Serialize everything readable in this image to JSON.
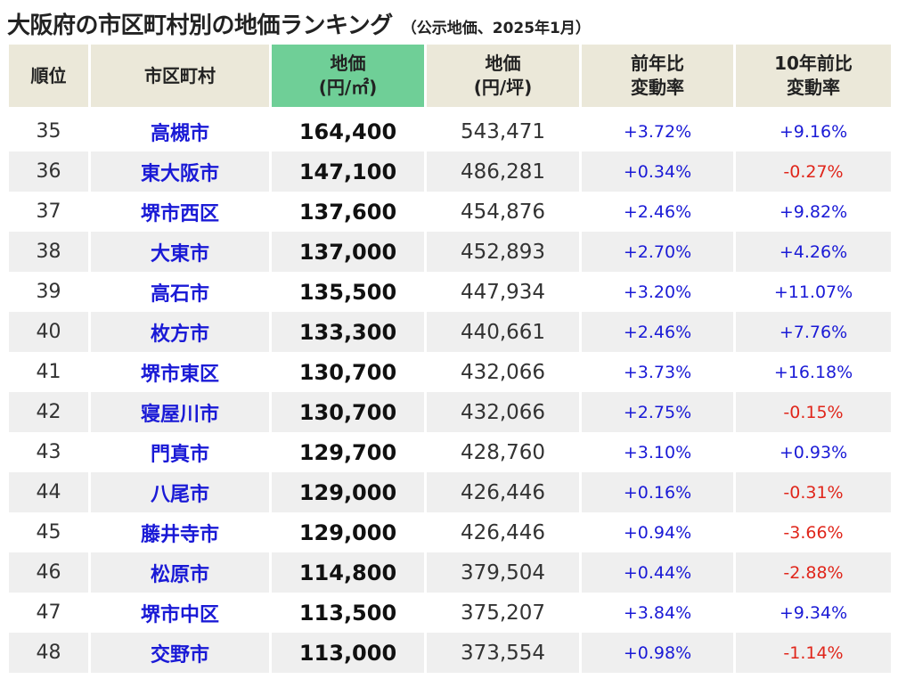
{
  "title": {
    "main": "大阪府の市区町村別の地価ランキング",
    "sub": "（公示地価、2025年1月）"
  },
  "headers": {
    "rank": "順位",
    "city": "市区町村",
    "price_m2_line1": "地価",
    "price_m2_line2": "(円/㎡)",
    "price_tsubo_line1": "地価",
    "price_tsubo_line2": "(円/坪)",
    "yoy_line1": "前年比",
    "yoy_line2": "変動率",
    "ten_year_line1": "10年前比",
    "ten_year_line2": "変動率"
  },
  "colors": {
    "header_bg": "#ebe8d9",
    "highlight_header_bg": "#6fcf97",
    "city_text": "#1a1ad6",
    "positive": "#1a1ad6",
    "negative": "#e0261b",
    "alt_row_bg": "#efefef"
  },
  "rows": [
    {
      "rank": "35",
      "city": "高槻市",
      "price_m2": "164,400",
      "price_tsubo": "543,471",
      "yoy": "+3.72%",
      "ten_year": "+9.16%"
    },
    {
      "rank": "36",
      "city": "東大阪市",
      "price_m2": "147,100",
      "price_tsubo": "486,281",
      "yoy": "+0.34%",
      "ten_year": "-0.27%"
    },
    {
      "rank": "37",
      "city": "堺市西区",
      "price_m2": "137,600",
      "price_tsubo": "454,876",
      "yoy": "+2.46%",
      "ten_year": "+9.82%"
    },
    {
      "rank": "38",
      "city": "大東市",
      "price_m2": "137,000",
      "price_tsubo": "452,893",
      "yoy": "+2.70%",
      "ten_year": "+4.26%"
    },
    {
      "rank": "39",
      "city": "高石市",
      "price_m2": "135,500",
      "price_tsubo": "447,934",
      "yoy": "+3.20%",
      "ten_year": "+11.07%"
    },
    {
      "rank": "40",
      "city": "枚方市",
      "price_m2": "133,300",
      "price_tsubo": "440,661",
      "yoy": "+2.46%",
      "ten_year": "+7.76%"
    },
    {
      "rank": "41",
      "city": "堺市東区",
      "price_m2": "130,700",
      "price_tsubo": "432,066",
      "yoy": "+3.73%",
      "ten_year": "+16.18%"
    },
    {
      "rank": "42",
      "city": "寝屋川市",
      "price_m2": "130,700",
      "price_tsubo": "432,066",
      "yoy": "+2.75%",
      "ten_year": "-0.15%"
    },
    {
      "rank": "43",
      "city": "門真市",
      "price_m2": "129,700",
      "price_tsubo": "428,760",
      "yoy": "+3.10%",
      "ten_year": "+0.93%"
    },
    {
      "rank": "44",
      "city": "八尾市",
      "price_m2": "129,000",
      "price_tsubo": "426,446",
      "yoy": "+0.16%",
      "ten_year": "-0.31%"
    },
    {
      "rank": "45",
      "city": "藤井寺市",
      "price_m2": "129,000",
      "price_tsubo": "426,446",
      "yoy": "+0.94%",
      "ten_year": "-3.66%"
    },
    {
      "rank": "46",
      "city": "松原市",
      "price_m2": "114,800",
      "price_tsubo": "379,504",
      "yoy": "+0.44%",
      "ten_year": "-2.88%"
    },
    {
      "rank": "47",
      "city": "堺市中区",
      "price_m2": "113,500",
      "price_tsubo": "375,207",
      "yoy": "+3.84%",
      "ten_year": "+9.34%"
    },
    {
      "rank": "48",
      "city": "交野市",
      "price_m2": "113,000",
      "price_tsubo": "373,554",
      "yoy": "+0.98%",
      "ten_year": "-1.14%"
    }
  ]
}
